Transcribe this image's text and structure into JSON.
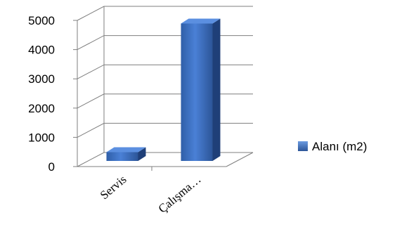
{
  "chart_data": {
    "type": "bar",
    "style": "3d-column",
    "categories": [
      "Servis",
      "Çalışma…"
    ],
    "series": [
      {
        "name": "Alanı (m2)",
        "values": [
          300,
          4700
        ],
        "color": "#3a6fc4"
      }
    ],
    "yticks": [
      0,
      1000,
      2000,
      3000,
      4000,
      5000
    ],
    "ylim": [
      0,
      5000
    ],
    "grid": true,
    "legend": "right"
  }
}
